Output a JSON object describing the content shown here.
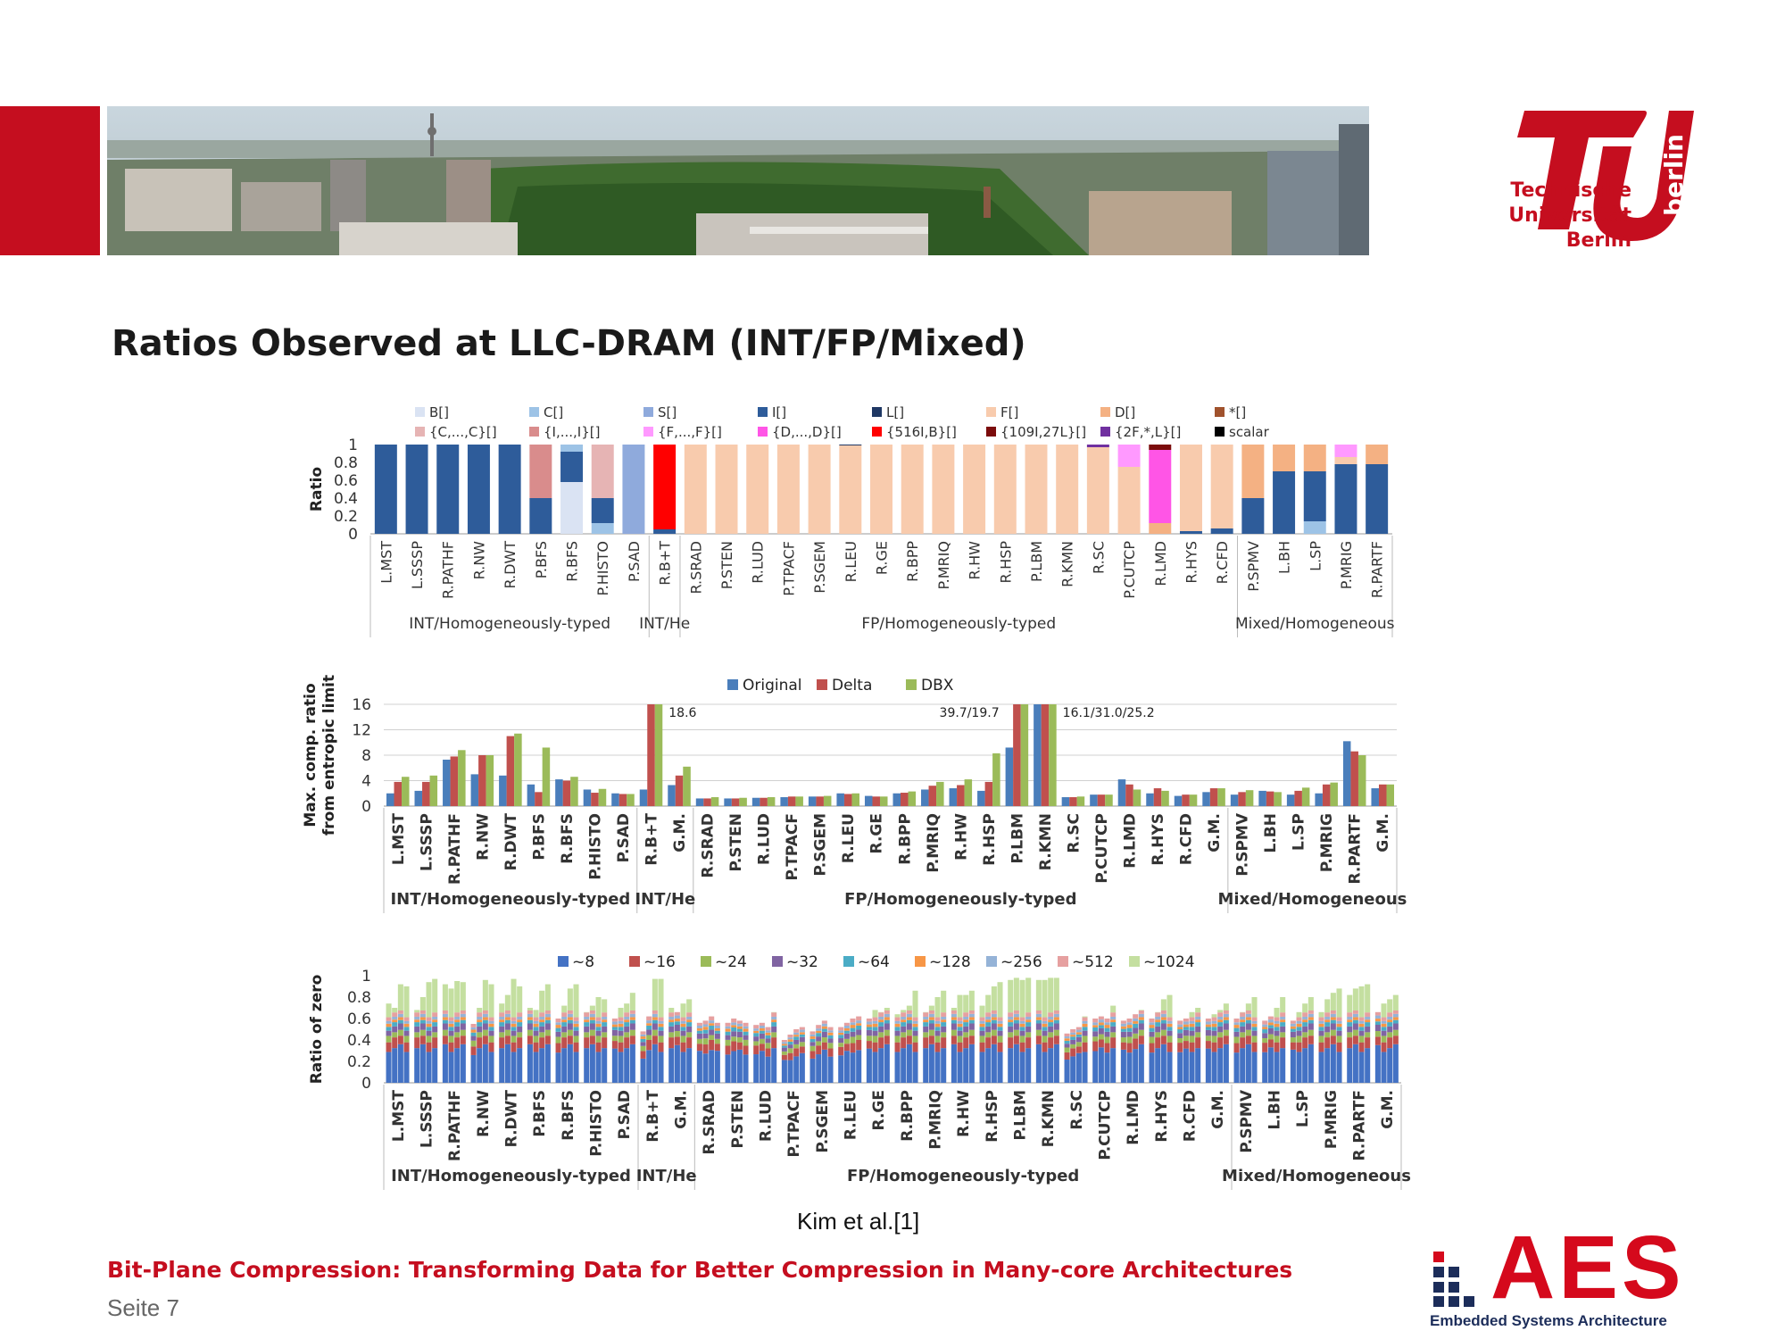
{
  "header": {
    "university_lines": [
      "Technische",
      "Universität",
      "Berlin"
    ],
    "logo_side_text": "berlin",
    "brand_red": "#c50e1f"
  },
  "slide": {
    "title": "Ratios Observed at LLC-DRAM (INT/FP/Mixed)",
    "citation": "Kim et al.[1]",
    "footer_title": "Bit-Plane Compression: Transforming Data for Better Compression in Many-core Architectures",
    "page_label": "Seite 7"
  },
  "aes_logo": {
    "letters": "AES",
    "subtitle": "Embedded Systems Architecture"
  },
  "chart_data": [
    {
      "type": "bar",
      "stacked": true,
      "ylabel": "Ratio",
      "ylim": [
        0,
        1
      ],
      "yticks": [
        "0",
        "0.2",
        "0.4",
        "0.6",
        "0.8",
        "1"
      ],
      "legend": [
        {
          "name": "B[]",
          "color": "#dae3f3"
        },
        {
          "name": "C[]",
          "color": "#9dc3e6"
        },
        {
          "name": "S[]",
          "color": "#8faadc"
        },
        {
          "name": "I[]",
          "color": "#2e5c9a"
        },
        {
          "name": "L[]",
          "color": "#1f3864"
        },
        {
          "name": "F[]",
          "color": "#f8cbad"
        },
        {
          "name": "D[]",
          "color": "#f4b183"
        },
        {
          "name": "*[]",
          "color": "#a0522d"
        },
        {
          "name": "{C,...,C}[]",
          "color": "#e6b4b4"
        },
        {
          "name": "{I,...,I}[]",
          "color": "#d98c8c"
        },
        {
          "name": "{F,...,F}[]",
          "color": "#ff99ff"
        },
        {
          "name": "{D,...,D}[]",
          "color": "#ff55e6"
        },
        {
          "name": "{516I,B}[]",
          "color": "#ff0000"
        },
        {
          "name": "{109I,27L}[]",
          "color": "#7b0c0c"
        },
        {
          "name": "{2F,*,L}[]",
          "color": "#7030a0"
        },
        {
          "name": "scalar",
          "color": "#000000"
        }
      ],
      "categories": [
        "L.MST",
        "L.SSSP",
        "R.PATHF",
        "R.NW",
        "R.DWT",
        "P.BFS",
        "R.BFS",
        "P.HISTO",
        "P.SAD",
        "R.B+T",
        "R.SRAD",
        "P.STEN",
        "R.LUD",
        "P.TPACF",
        "P.SGEM",
        "R.LEU",
        "R.GE",
        "R.BPP",
        "P.MRIQ",
        "R.HW",
        "R.HSP",
        "P.LBM",
        "R.KMN",
        "R.SC",
        "P.CUTCP",
        "R.LMD",
        "R.HYS",
        "R.CFD",
        "P.SPMV",
        "L.BH",
        "L.SP",
        "P.MRIG",
        "R.PARTF"
      ],
      "stacks": [
        [
          [
            "I[]",
            1.0
          ]
        ],
        [
          [
            "I[]",
            1.0
          ]
        ],
        [
          [
            "I[]",
            1.0
          ]
        ],
        [
          [
            "I[]",
            1.0
          ]
        ],
        [
          [
            "I[]",
            1.0
          ]
        ],
        [
          [
            "I[]",
            0.4
          ],
          [
            "{I,...,I}[]",
            0.6
          ]
        ],
        [
          [
            "B[]",
            0.58
          ],
          [
            "I[]",
            0.34
          ],
          [
            "C[]",
            0.08
          ]
        ],
        [
          [
            "C[]",
            0.12
          ],
          [
            "I[]",
            0.28
          ],
          [
            "{C,...,C}[]",
            0.6
          ]
        ],
        [
          [
            "S[]",
            1.0
          ]
        ],
        [
          [
            "I[]",
            0.05
          ],
          [
            "{516I,B}[]",
            0.95
          ]
        ],
        [
          [
            "F[]",
            1.0
          ]
        ],
        [
          [
            "F[]",
            1.0
          ]
        ],
        [
          [
            "F[]",
            1.0
          ]
        ],
        [
          [
            "F[]",
            1.0
          ]
        ],
        [
          [
            "F[]",
            1.0
          ]
        ],
        [
          [
            "F[]",
            0.99
          ],
          [
            "L[]",
            0.01
          ]
        ],
        [
          [
            "F[]",
            1.0
          ]
        ],
        [
          [
            "F[]",
            1.0
          ]
        ],
        [
          [
            "F[]",
            1.0
          ]
        ],
        [
          [
            "F[]",
            1.0
          ]
        ],
        [
          [
            "F[]",
            1.0
          ]
        ],
        [
          [
            "F[]",
            1.0
          ]
        ],
        [
          [
            "F[]",
            1.0
          ]
        ],
        [
          [
            "F[]",
            0.97
          ],
          [
            "{2F,*,L}[]",
            0.03
          ]
        ],
        [
          [
            "F[]",
            0.75
          ],
          [
            "{F,...,F}[]",
            0.25
          ]
        ],
        [
          [
            "D[]",
            0.12
          ],
          [
            "{D,...,D}[]",
            0.82
          ],
          [
            "{109I,27L}[]",
            0.06
          ]
        ],
        [
          [
            "I[]",
            0.03
          ],
          [
            "F[]",
            0.97
          ]
        ],
        [
          [
            "I[]",
            0.06
          ],
          [
            "F[]",
            0.94
          ]
        ],
        [
          [
            "I[]",
            0.4
          ],
          [
            "D[]",
            0.6
          ]
        ],
        [
          [
            "I[]",
            0.7
          ],
          [
            "D[]",
            0.3
          ]
        ],
        [
          [
            "C[]",
            0.14
          ],
          [
            "I[]",
            0.56
          ],
          [
            "D[]",
            0.3
          ]
        ],
        [
          [
            "I[]",
            0.78
          ],
          [
            "F[]",
            0.08
          ],
          [
            "{F,...,F}[]",
            0.14
          ]
        ],
        [
          [
            "I[]",
            0.78
          ],
          [
            "D[]",
            0.22
          ]
        ]
      ],
      "groups": [
        {
          "label": "INT/Homogeneously-typed",
          "from": 0,
          "to": 8
        },
        {
          "label": "INT/He",
          "from": 9,
          "to": 9
        },
        {
          "label": "FP/Homogeneously-typed",
          "from": 10,
          "to": 27
        },
        {
          "label": "Mixed/Homogeneous",
          "from": 28,
          "to": 32
        }
      ]
    },
    {
      "type": "bar",
      "ylabel": "Max. comp. ratio from entropic limit",
      "ylim": [
        0,
        16
      ],
      "yticks": [
        "0",
        "4",
        "8",
        "12",
        "16"
      ],
      "categories": [
        "L.MST",
        "L.SSSP",
        "R.PATHF",
        "R.NW",
        "R.DWT",
        "P.BFS",
        "R.BFS",
        "P.HISTO",
        "P.SAD",
        "R.B+T",
        "G.M.",
        "R.SRAD",
        "P.STEN",
        "R.LUD",
        "P.TPACF",
        "P.SGEM",
        "R.LEU",
        "R.GE",
        "R.BPP",
        "P.MRIQ",
        "R.HW",
        "R.HSP",
        "P.LBM",
        "R.KMN",
        "R.SC",
        "P.CUTCP",
        "R.LMD",
        "R.HYS",
        "R.CFD",
        "G.M.",
        "P.SPMV",
        "L.BH",
        "L.SP",
        "P.MRIG",
        "R.PARTF",
        "G.M."
      ],
      "series": [
        {
          "name": "Original",
          "color": "#4a7ebb",
          "values": [
            2,
            2.4,
            7.3,
            5,
            4.8,
            3.4,
            4.2,
            2.6,
            2,
            2.6,
            3.3,
            1.2,
            1.2,
            1.3,
            1.4,
            1.5,
            2,
            1.6,
            2,
            2.6,
            2.8,
            2.4,
            9.2,
            16,
            1.4,
            1.8,
            4.2,
            2,
            1.6,
            2.2,
            1.8,
            2.4,
            1.8,
            2,
            10.2,
            2.8
          ]
        },
        {
          "name": "Delta",
          "color": "#c0504d",
          "values": [
            3.8,
            3.8,
            7.8,
            8,
            11,
            2.2,
            4,
            2.1,
            1.9,
            16,
            4.8,
            1.2,
            1.2,
            1.3,
            1.5,
            1.5,
            1.9,
            1.5,
            2.1,
            3.2,
            3.3,
            3.8,
            16,
            16,
            1.4,
            1.8,
            3.4,
            2.8,
            1.8,
            2.8,
            2.2,
            2.3,
            2.4,
            3.4,
            8.6,
            3.4
          ]
        },
        {
          "name": "DBX",
          "color": "#9bbb59",
          "values": [
            4.6,
            4.8,
            8.8,
            8,
            11.4,
            9.2,
            4.6,
            2.7,
            1.9,
            16,
            6.2,
            1.4,
            1.3,
            1.4,
            1.5,
            1.6,
            2,
            1.5,
            2.3,
            3.8,
            4.2,
            8.3,
            16,
            16,
            1.5,
            1.8,
            2.6,
            2.4,
            1.8,
            2.8,
            2.5,
            2.2,
            2.9,
            3.7,
            8,
            3.4
          ]
        }
      ],
      "annotations": [
        "18.6",
        "39.7/19.7",
        "16.1/31.0/25.2"
      ],
      "groups": [
        {
          "label": "INT/Homogeneously-typed",
          "from": 0,
          "to": 8
        },
        {
          "label": "INT/He",
          "from": 9,
          "to": 10
        },
        {
          "label": "FP/Homogeneously-typed",
          "from": 11,
          "to": 29
        },
        {
          "label": "Mixed/Homogeneous",
          "from": 30,
          "to": 35
        }
      ]
    },
    {
      "type": "bar",
      "stacked": true,
      "ylabel": "Ratio of zero",
      "ylim": [
        0,
        1
      ],
      "yticks": [
        "0",
        "0.2",
        "0.4",
        "0.6",
        "0.8",
        "1"
      ],
      "legend": [
        {
          "name": "~8",
          "color": "#4472c4"
        },
        {
          "name": "~16",
          "color": "#c0504d"
        },
        {
          "name": "~24",
          "color": "#9bbb59"
        },
        {
          "name": "~32",
          "color": "#8064a2"
        },
        {
          "name": "~64",
          "color": "#4bacc6"
        },
        {
          "name": "~128",
          "color": "#f79646"
        },
        {
          "name": "~256",
          "color": "#95b3d7"
        },
        {
          "name": "~512",
          "color": "#e6a0a0"
        },
        {
          "name": "~1024",
          "color": "#c4dfa0"
        }
      ],
      "categories": [
        "L.MST",
        "L.SSSP",
        "R.PATHF",
        "R.NW",
        "R.DWT",
        "P.BFS",
        "R.BFS",
        "P.HISTO",
        "P.SAD",
        "R.B+T",
        "G.M.",
        "R.SRAD",
        "P.STEN",
        "R.LUD",
        "P.TPACF",
        "P.SGEM",
        "R.LEU",
        "R.GE",
        "R.BPP",
        "P.MRIQ",
        "R.HW",
        "R.HSP",
        "P.LBM",
        "R.KMN",
        "R.SC",
        "P.CUTCP",
        "R.LMD",
        "R.HYS",
        "R.CFD",
        "G.M.",
        "P.SPMV",
        "L.BH",
        "L.SP",
        "P.MRIG",
        "R.PARTF",
        "G.M."
      ],
      "bars_per_category": 4,
      "totals": [
        [
          0.74,
          0.7,
          0.92,
          0.9
        ],
        [
          0.68,
          0.8,
          0.94,
          0.97
        ],
        [
          0.92,
          0.88,
          0.95,
          0.94
        ],
        [
          0.55,
          0.7,
          0.96,
          0.92
        ],
        [
          0.74,
          0.82,
          0.97,
          0.9
        ],
        [
          0.7,
          0.68,
          0.86,
          0.92
        ],
        [
          0.6,
          0.72,
          0.88,
          0.92
        ],
        [
          0.66,
          0.72,
          0.8,
          0.78
        ],
        [
          0.6,
          0.7,
          0.74,
          0.84
        ],
        [
          0.48,
          0.62,
          0.97,
          0.97
        ],
        [
          0.7,
          0.66,
          0.74,
          0.78
        ],
        [
          0.56,
          0.58,
          0.62,
          0.56
        ],
        [
          0.56,
          0.6,
          0.58,
          0.56
        ],
        [
          0.54,
          0.56,
          0.52,
          0.66
        ],
        [
          0.4,
          0.45,
          0.5,
          0.52
        ],
        [
          0.48,
          0.54,
          0.58,
          0.52
        ],
        [
          0.52,
          0.56,
          0.6,
          0.62
        ],
        [
          0.6,
          0.68,
          0.66,
          0.7
        ],
        [
          0.64,
          0.68,
          0.72,
          0.86
        ],
        [
          0.66,
          0.72,
          0.8,
          0.86
        ],
        [
          0.7,
          0.82,
          0.82,
          0.86
        ],
        [
          0.72,
          0.82,
          0.9,
          0.94
        ],
        [
          0.96,
          0.98,
          0.96,
          0.98
        ],
        [
          0.96,
          0.96,
          0.98,
          0.98
        ],
        [
          0.46,
          0.5,
          0.52,
          0.62
        ],
        [
          0.6,
          0.62,
          0.6,
          0.72
        ],
        [
          0.58,
          0.6,
          0.64,
          0.68
        ],
        [
          0.6,
          0.66,
          0.78,
          0.82
        ],
        [
          0.58,
          0.6,
          0.66,
          0.7
        ],
        [
          0.6,
          0.64,
          0.68,
          0.74
        ],
        [
          0.6,
          0.66,
          0.74,
          0.8
        ],
        [
          0.58,
          0.62,
          0.7,
          0.8
        ],
        [
          0.58,
          0.66,
          0.74,
          0.8
        ],
        [
          0.66,
          0.78,
          0.84,
          0.88
        ],
        [
          0.82,
          0.88,
          0.9,
          0.92
        ],
        [
          0.66,
          0.74,
          0.78,
          0.82
        ]
      ],
      "groups": [
        {
          "label": "INT/Homogeneously-typed",
          "from": 0,
          "to": 8
        },
        {
          "label": "INT/He",
          "from": 9,
          "to": 10
        },
        {
          "label": "FP/Homogeneously-typed",
          "from": 11,
          "to": 29
        },
        {
          "label": "Mixed/Homogeneous",
          "from": 30,
          "to": 35
        }
      ]
    }
  ]
}
